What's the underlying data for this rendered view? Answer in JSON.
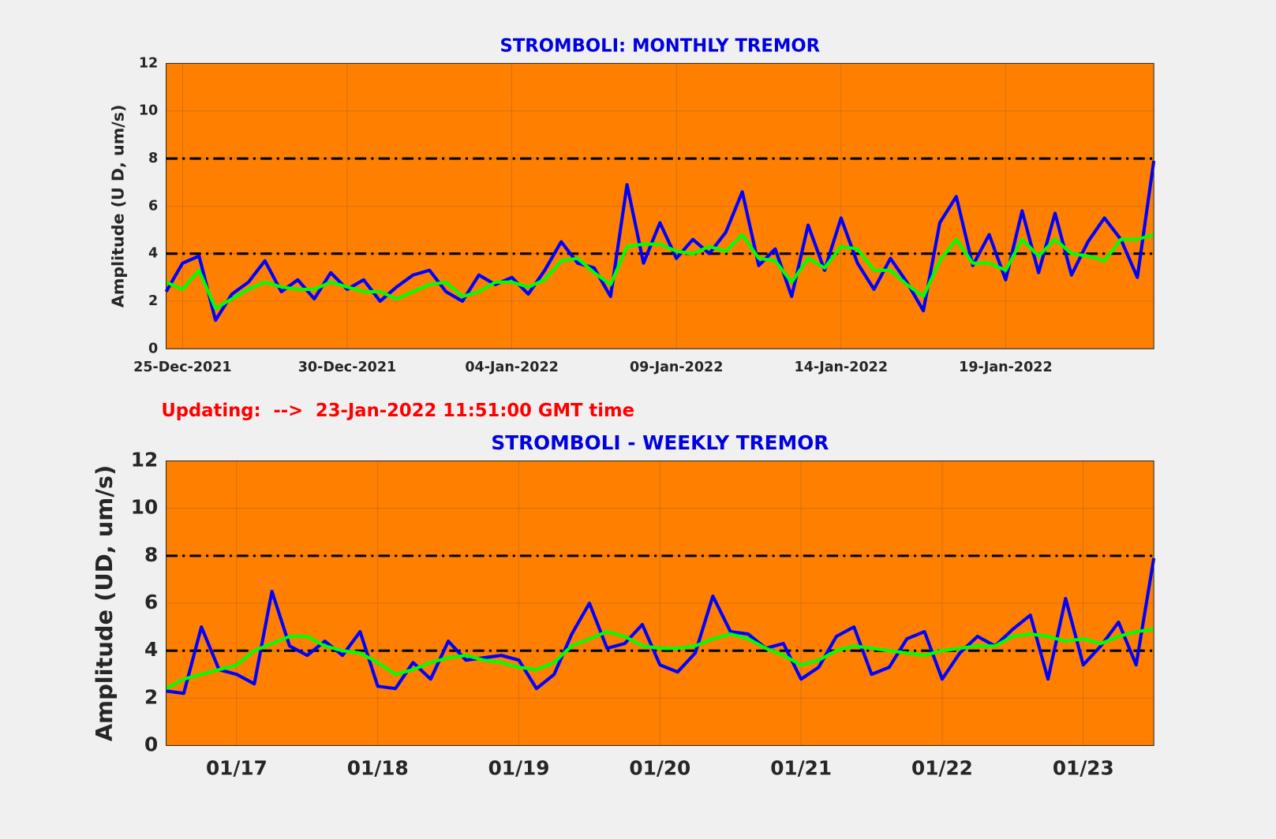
{
  "chart_data": [
    {
      "type": "line",
      "title": "STROMBOLI: MONTHLY TREMOR",
      "y_label": "Amplitude   (U D,  um/s)",
      "annotation": "Updating:  -->  23-Jan-2022 11:51:00 GMT time",
      "categories": [
        null,
        "25-Dec-2021",
        null,
        null,
        null,
        null,
        null,
        null,
        null,
        null,
        null,
        "30-Dec-2021",
        null,
        null,
        null,
        null,
        null,
        null,
        null,
        null,
        null,
        "04-Jan-2022",
        null,
        null,
        null,
        null,
        null,
        null,
        null,
        null,
        null,
        "09-Jan-2022",
        null,
        null,
        null,
        null,
        null,
        null,
        null,
        null,
        null,
        "14-Jan-2022",
        null,
        null,
        null,
        null,
        null,
        null,
        null,
        null,
        null,
        "19-Jan-2022",
        null,
        null,
        null,
        null,
        null,
        null,
        null,
        null,
        null
      ],
      "series": [
        {
          "color": "#0000ff",
          "values": [
            2.4,
            3.6,
            3.9,
            1.2,
            2.3,
            2.8,
            3.7,
            2.4,
            2.9,
            2.1,
            3.2,
            2.5,
            2.9,
            2.0,
            2.6,
            3.1,
            3.3,
            2.4,
            2.0,
            3.1,
            2.7,
            3.0,
            2.3,
            3.3,
            4.5,
            3.6,
            3.4,
            2.2,
            6.9,
            3.6,
            5.3,
            3.8,
            4.6,
            4.0,
            4.9,
            6.6,
            3.5,
            4.2,
            2.2,
            5.2,
            3.3,
            5.5,
            3.6,
            2.5,
            3.8,
            2.8,
            1.6,
            5.3,
            6.4,
            3.5,
            4.8,
            2.9,
            5.8,
            3.2,
            5.7,
            3.1,
            4.5,
            5.5,
            4.6,
            3.0,
            7.9
          ]
        },
        {
          "color": "#00ff00",
          "values": [
            2.8,
            2.5,
            3.3,
            1.7,
            2.1,
            2.5,
            2.8,
            2.6,
            2.5,
            2.5,
            2.8,
            2.6,
            2.4,
            2.4,
            2.1,
            2.4,
            2.7,
            2.8,
            2.2,
            2.4,
            2.8,
            2.8,
            2.6,
            2.9,
            3.7,
            3.8,
            3.2,
            2.7,
            4.3,
            4.4,
            4.4,
            4.1,
            4.0,
            4.3,
            4.1,
            4.8,
            3.8,
            3.7,
            2.8,
            3.8,
            3.4,
            4.3,
            4.2,
            3.3,
            3.3,
            2.7,
            2.2,
            3.7,
            4.6,
            3.6,
            3.6,
            3.3,
            4.6,
            3.9,
            4.6,
            4.0,
            3.9,
            3.7,
            4.6,
            4.6,
            4.8
          ]
        }
      ],
      "hlines": [
        8,
        4
      ],
      "ylim": [
        0,
        12
      ],
      "yticks": [
        0,
        2,
        4,
        6,
        8,
        10,
        12
      ],
      "grid": true,
      "background": "#ff8000"
    },
    {
      "type": "line",
      "title": "STROMBOLI - WEEKLY TREMOR",
      "y_label": "Amplitude (UD, um/s)",
      "categories": [
        null,
        null,
        null,
        null,
        "01/17",
        null,
        null,
        null,
        null,
        null,
        null,
        null,
        "01/18",
        null,
        null,
        null,
        null,
        null,
        null,
        null,
        "01/19",
        null,
        null,
        null,
        null,
        null,
        null,
        null,
        "01/20",
        null,
        null,
        null,
        null,
        null,
        null,
        null,
        "01/21",
        null,
        null,
        null,
        null,
        null,
        null,
        null,
        "01/22",
        null,
        null,
        null,
        null,
        null,
        null,
        null,
        "01/23",
        null,
        null,
        null,
        null
      ],
      "series": [
        {
          "color": "#0000ff",
          "values": [
            2.3,
            2.2,
            5.0,
            3.2,
            3.0,
            2.6,
            6.5,
            4.2,
            3.8,
            4.4,
            3.8,
            4.8,
            2.5,
            2.4,
            3.5,
            2.8,
            4.4,
            3.6,
            3.7,
            3.8,
            3.6,
            2.4,
            3.0,
            4.7,
            6.0,
            4.1,
            4.3,
            5.1,
            3.4,
            3.1,
            3.9,
            6.3,
            4.8,
            4.7,
            4.1,
            4.3,
            2.8,
            3.3,
            4.6,
            5.0,
            3.0,
            3.3,
            4.5,
            4.8,
            2.8,
            3.9,
            4.6,
            4.2,
            4.9,
            5.5,
            2.8,
            6.2,
            3.4,
            4.2,
            5.2,
            3.4,
            7.9
          ]
        },
        {
          "color": "#00ff00",
          "values": [
            2.4,
            2.8,
            3.0,
            3.2,
            3.4,
            4.0,
            4.3,
            4.6,
            4.6,
            4.2,
            4.0,
            3.9,
            3.5,
            3.0,
            3.2,
            3.5,
            3.7,
            3.8,
            3.6,
            3.5,
            3.3,
            3.2,
            3.5,
            4.2,
            4.5,
            4.8,
            4.6,
            4.2,
            4.1,
            4.1,
            4.2,
            4.5,
            4.7,
            4.5,
            4.1,
            3.8,
            3.4,
            3.6,
            4.0,
            4.2,
            4.1,
            4.0,
            3.9,
            3.8,
            4.0,
            4.1,
            4.2,
            4.2,
            4.6,
            4.7,
            4.6,
            4.4,
            4.5,
            4.3,
            4.6,
            4.8,
            4.9
          ]
        }
      ],
      "hlines": [
        8,
        4
      ],
      "ylim": [
        0,
        12
      ],
      "yticks": [
        0,
        2,
        4,
        6,
        8,
        10,
        12
      ],
      "grid": true,
      "background": "#ff8000"
    }
  ]
}
